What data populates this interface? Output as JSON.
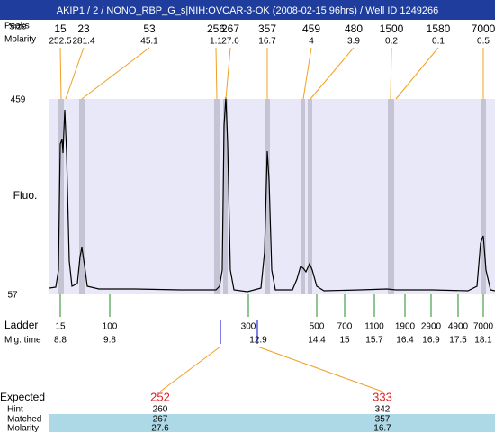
{
  "header": {
    "title": "AKIP1 / 2 / NONO_RBP_G_s|NIH:OVCAR-3-OK (2008-02-15 96hrs) / Well ID 1249266"
  },
  "peaks": {
    "labels": [
      "Peaks",
      "Size",
      "Molarity"
    ],
    "items": [
      {
        "size": "15",
        "molarity": "252.5"
      },
      {
        "size": "23",
        "molarity": "281.4"
      },
      {
        "size": "53",
        "molarity": "45.1"
      },
      {
        "size": "256",
        "molarity": "1.1"
      },
      {
        "size": "267",
        "molarity": "27.6"
      },
      {
        "size": "357",
        "molarity": "16.7"
      },
      {
        "size": "459",
        "molarity": "4"
      },
      {
        "size": "480",
        "molarity": "3.9"
      },
      {
        "size": "1500",
        "molarity": "0.2"
      },
      {
        "size": "1580",
        "molarity": "0.1"
      },
      {
        "size": "7000",
        "molarity": "0.5"
      }
    ]
  },
  "plot": {
    "y_label": "Fluo.",
    "y_top": "459",
    "y_bottom": "57"
  },
  "ladder": {
    "labels": [
      "Ladder",
      "Mig. time"
    ],
    "items": [
      {
        "size": "15",
        "time": "8.8"
      },
      {
        "size": "100",
        "time": "9.8"
      },
      {
        "size": "300",
        "time": "12.9"
      },
      {
        "size": "500",
        "time": "14.4"
      },
      {
        "size": "700",
        "time": "15"
      },
      {
        "size": "1100",
        "time": "15.7"
      },
      {
        "size": "1900",
        "time": "16.4"
      },
      {
        "size": "2900",
        "time": "16.9"
      },
      {
        "size": "4900",
        "time": "17.5"
      },
      {
        "size": "7000",
        "time": "18.1"
      }
    ]
  },
  "expected": {
    "labels": [
      "Expected",
      "Hint",
      "Matched",
      "Molarity"
    ],
    "items": [
      {
        "expected": "252",
        "hint": "260",
        "matched": "267",
        "molarity": "27.6"
      },
      {
        "expected": "333",
        "hint": "342",
        "matched": "357",
        "molarity": "16.7"
      }
    ]
  }
}
